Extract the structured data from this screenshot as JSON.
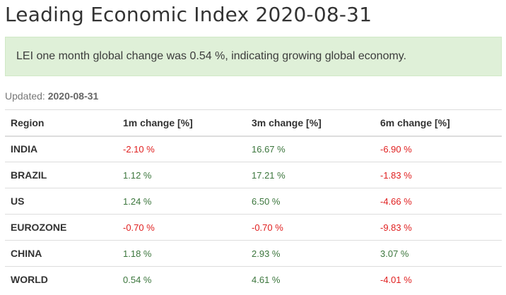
{
  "page": {
    "title": "Leading Economic Index 2020-08-31"
  },
  "alert": {
    "text": "LEI one month global change was 0.54 %, indicating growing global economy."
  },
  "updated": {
    "label": "Updated:",
    "value": "2020-08-31"
  },
  "table": {
    "headers": [
      "Region",
      "1m change [%]",
      "3m change [%]",
      "6m change [%]"
    ],
    "rows": [
      {
        "region": "INDIA",
        "m1": "-2.10 %",
        "m3": "16.67 %",
        "m6": "-6.90 %"
      },
      {
        "region": "BRAZIL",
        "m1": "1.12 %",
        "m3": "17.21 %",
        "m6": "-1.83 %"
      },
      {
        "region": "US",
        "m1": "1.24 %",
        "m3": "6.50 %",
        "m6": "-4.66 %"
      },
      {
        "region": "EUROZONE",
        "m1": "-0.70 %",
        "m3": "-0.70 %",
        "m6": "-9.83 %"
      },
      {
        "region": "CHINA",
        "m1": "1.18 %",
        "m3": "2.93 %",
        "m6": "3.07 %"
      },
      {
        "region": "WORLD",
        "m1": "0.54 %",
        "m3": "4.61 %",
        "m6": "-4.01 %"
      }
    ]
  },
  "colors": {
    "positive": "#3c763d",
    "negative": "#e02020",
    "alert_background": "#dff0d8"
  }
}
